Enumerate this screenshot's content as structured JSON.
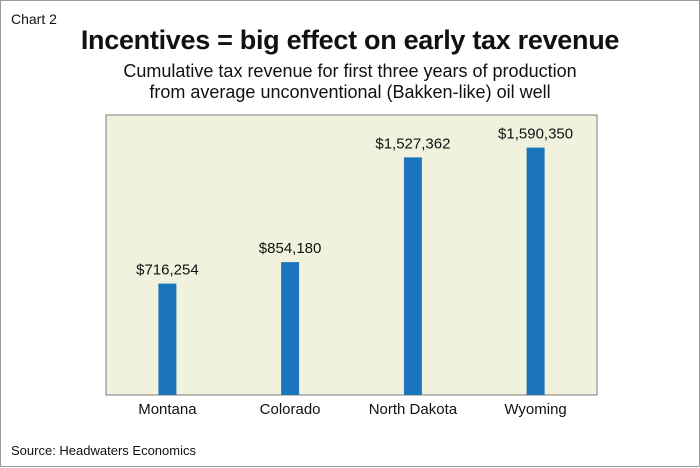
{
  "chart_label": "Chart 2",
  "source": "Source: Headwaters Economics",
  "colors": {
    "bar": "#1a75bc",
    "plot_bg": "#f1f2dd",
    "plot_border": "#7d7d7d"
  },
  "chart_data": {
    "type": "bar",
    "title": "Incentives = big effect on early tax revenue",
    "subtitle_lines": [
      "Cumulative tax revenue for first three years of production",
      "from average unconventional (Bakken-like) oil well"
    ],
    "categories": [
      "Montana",
      "Colorado",
      "North Dakota",
      "Wyoming"
    ],
    "values": [
      716254,
      854180,
      1527362,
      1590350
    ],
    "value_labels": [
      "$716,254",
      "$854,180",
      "$1,527,362",
      "$1,590,350"
    ],
    "xlabel": "",
    "ylabel": "",
    "ylim": [
      0,
      1800000
    ],
    "grid": false,
    "legend": "none"
  }
}
